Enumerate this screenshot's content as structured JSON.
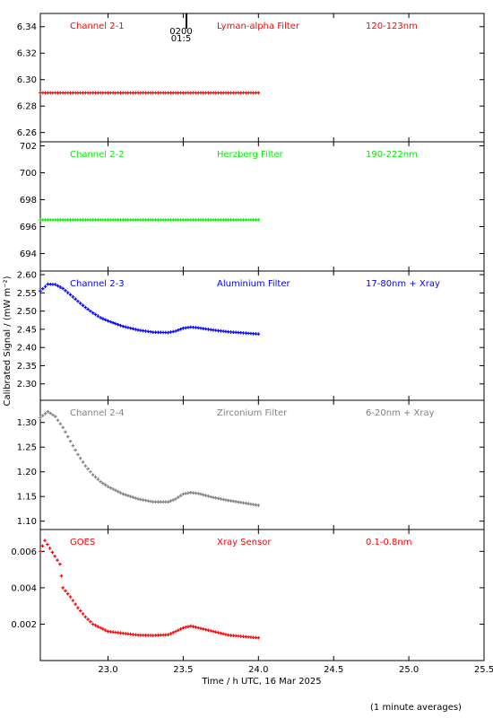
{
  "figure": {
    "ylabel": "Calibrated Signal / (mW m⁻²)",
    "xlabel": "Time / h UTC, 16 Mar 2025",
    "footnote": "(1 minute averages)",
    "marker_line1": "0200",
    "marker_line2": "01:5"
  },
  "chart_data": [
    {
      "type": "scatter",
      "panel_titles": [
        "Channel 2-1",
        "Lyman-alpha Filter",
        "120-123nm"
      ],
      "color": "#ff0000",
      "xlim": [
        22.55,
        25.5
      ],
      "ylim": [
        6.253,
        6.35
      ],
      "yticks": [
        6.26,
        6.28,
        6.3,
        6.32,
        6.34
      ],
      "ytick_labels": [
        "6.26",
        "6.28",
        "6.30",
        "6.32",
        "6.34"
      ],
      "series": [
        {
          "x": [
            22.55,
            24.0
          ],
          "y": [
            6.29,
            6.29
          ]
        }
      ]
    },
    {
      "type": "scatter",
      "panel_titles": [
        "Channel 2-2",
        "Herzberg Filter",
        "190-222nm"
      ],
      "color": "#00ee00",
      "xlim": [
        22.55,
        25.5
      ],
      "ylim": [
        692.7,
        702.3
      ],
      "yticks": [
        694,
        696,
        698,
        700,
        702
      ],
      "ytick_labels": [
        "694",
        "696",
        "698",
        "700",
        "702"
      ],
      "series": [
        {
          "x": [
            22.55,
            24.0
          ],
          "y": [
            696.5,
            696.5
          ]
        }
      ]
    },
    {
      "type": "scatter",
      "panel_titles": [
        "Channel 2-3",
        "Aluminium Filter",
        "17-80nm + Xray"
      ],
      "color": "#0000ff",
      "xlim": [
        22.55,
        25.5
      ],
      "ylim": [
        2.255,
        2.61
      ],
      "yticks": [
        2.3,
        2.35,
        2.4,
        2.45,
        2.5,
        2.55,
        2.6
      ],
      "ytick_labels": [
        "2.30",
        "2.35",
        "2.40",
        "2.45",
        "2.50",
        "2.55",
        "2.60"
      ],
      "series": [
        {
          "x": [
            22.55,
            22.6,
            22.65,
            22.7,
            22.75,
            22.8,
            22.85,
            22.9,
            22.95,
            23.0,
            23.1,
            23.2,
            23.3,
            23.4,
            23.45,
            23.5,
            23.55,
            23.6,
            23.7,
            23.8,
            23.9,
            24.0
          ],
          "y": [
            2.555,
            2.574,
            2.573,
            2.562,
            2.545,
            2.527,
            2.51,
            2.495,
            2.482,
            2.473,
            2.458,
            2.448,
            2.442,
            2.441,
            2.445,
            2.453,
            2.456,
            2.454,
            2.448,
            2.443,
            2.44,
            2.437
          ]
        }
      ]
    },
    {
      "type": "scatter",
      "panel_titles": [
        "Channel 2-4",
        "Zirconium Filter",
        "6-20nm + Xray"
      ],
      "color": "#808080",
      "xlim": [
        22.55,
        25.5
      ],
      "ylim": [
        1.083,
        1.345
      ],
      "yticks": [
        1.1,
        1.15,
        1.2,
        1.25,
        1.3
      ],
      "ytick_labels": [
        "1.10",
        "1.15",
        "1.20",
        "1.25",
        "1.30"
      ],
      "series": [
        {
          "x": [
            22.55,
            22.6,
            22.65,
            22.7,
            22.75,
            22.8,
            22.85,
            22.9,
            22.95,
            23.0,
            23.1,
            23.2,
            23.3,
            23.4,
            23.45,
            23.5,
            23.55,
            23.6,
            23.7,
            23.8,
            23.9,
            24.0
          ],
          "y": [
            1.31,
            1.322,
            1.312,
            1.29,
            1.262,
            1.235,
            1.212,
            1.194,
            1.18,
            1.17,
            1.155,
            1.145,
            1.139,
            1.139,
            1.145,
            1.155,
            1.158,
            1.156,
            1.148,
            1.142,
            1.137,
            1.132
          ]
        }
      ]
    },
    {
      "type": "scatter",
      "panel_titles": [
        "GOES",
        "Xray Sensor",
        "0.1-0.8nm"
      ],
      "color": "#ff0000",
      "xlim": [
        22.55,
        25.5
      ],
      "ylim": [
        0.0,
        0.0072
      ],
      "yticks": [
        0.002,
        0.004,
        0.006
      ],
      "ytick_labels": [
        "0.002",
        "0.004",
        "0.006"
      ],
      "series": [
        {
          "x": [
            22.55,
            22.58,
            22.68,
            22.7,
            22.75,
            22.8,
            22.85,
            22.9,
            22.95,
            23.0,
            23.1,
            23.2,
            23.3,
            23.4,
            23.45,
            23.5,
            23.55,
            23.6,
            23.7,
            23.8,
            23.9,
            24.0
          ],
          "y": [
            0.006,
            0.0066,
            0.0053,
            0.004,
            0.0035,
            0.0029,
            0.0024,
            0.002,
            0.0018,
            0.0016,
            0.0015,
            0.0014,
            0.00138,
            0.00142,
            0.0016,
            0.0018,
            0.0019,
            0.0018,
            0.0016,
            0.0014,
            0.00132,
            0.00125
          ]
        }
      ]
    }
  ],
  "xaxis": {
    "ticks": [
      23.0,
      23.5,
      24.0,
      24.5,
      25.0,
      25.5
    ],
    "tick_labels": [
      "23.0",
      "23.5",
      "24.0",
      "24.5",
      "25.0",
      "25.5"
    ]
  }
}
